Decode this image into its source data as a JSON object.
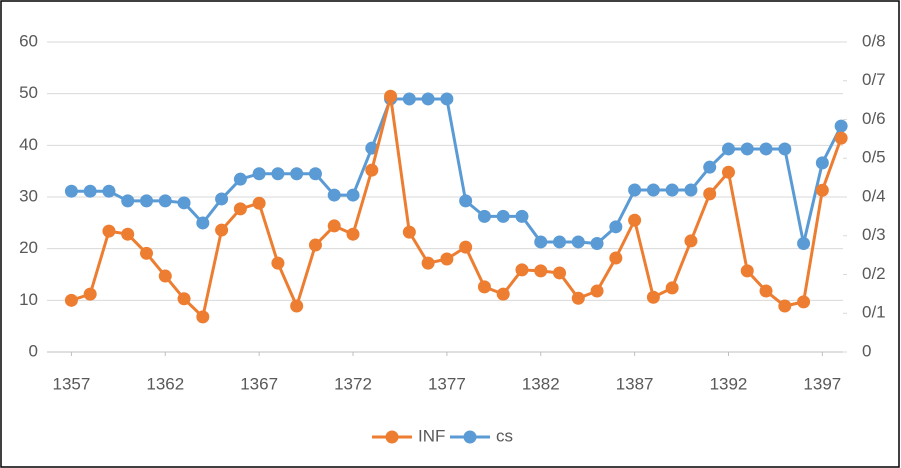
{
  "chart_data": {
    "type": "line",
    "x": [
      1357,
      1358,
      1359,
      1360,
      1361,
      1362,
      1363,
      1364,
      1365,
      1366,
      1367,
      1368,
      1369,
      1370,
      1371,
      1372,
      1373,
      1374,
      1375,
      1376,
      1377,
      1378,
      1379,
      1380,
      1381,
      1382,
      1383,
      1384,
      1385,
      1386,
      1387,
      1388,
      1389,
      1390,
      1391,
      1392,
      1393,
      1394,
      1395,
      1396,
      1397,
      1398
    ],
    "xlim": [
      1355.7,
      1398.1
    ],
    "xticks": [
      1357,
      1362,
      1367,
      1372,
      1377,
      1382,
      1387,
      1392,
      1397
    ],
    "ylim": [
      0,
      60
    ],
    "yticks": [
      0,
      10,
      20,
      30,
      40,
      50,
      60
    ],
    "y2lim": [
      0,
      0.8
    ],
    "y2ticks": [
      0,
      {
        "value": 0.1,
        "label": "0/1"
      },
      {
        "value": 0.2,
        "label": "0/2"
      },
      {
        "value": 0.3,
        "label": "0/3"
      },
      {
        "value": 0.4,
        "label": "0/4"
      },
      {
        "value": 0.5,
        "label": "0/5"
      },
      {
        "value": 0.6,
        "label": "0/6"
      },
      {
        "value": 0.7,
        "label": "0/7"
      },
      {
        "value": 0.8,
        "label": "0/8"
      }
    ],
    "grid": true,
    "legend": "bottom",
    "series": [
      {
        "name": "INF",
        "color": "#ED7D31",
        "values": [
          10,
          11.2,
          23.4,
          22.8,
          19.1,
          14.7,
          10.3,
          6.8,
          23.6,
          27.7,
          28.8,
          17.2,
          8.9,
          20.7,
          24.4,
          22.8,
          35.2,
          49.5,
          23.2,
          17.2,
          18,
          20.3,
          12.6,
          11.2,
          15.9,
          15.7,
          15.3,
          10.4,
          11.8,
          18.2,
          25.5,
          10.6,
          12.4,
          21.5,
          30.6,
          34.8,
          15.7,
          11.8,
          8.9,
          9.7,
          31.3,
          41.4
        ]
      },
      {
        "name": "cs",
        "color": "#5B9BD5",
        "axis": "y2",
        "values": [
          0.415,
          0.415,
          0.415,
          0.39,
          0.39,
          0.39,
          0.385,
          0.333,
          0.395,
          0.446,
          0.46,
          0.46,
          0.46,
          0.46,
          0.405,
          0.405,
          0.526,
          0.653,
          0.653,
          0.653,
          0.653,
          0.39,
          0.35,
          0.35,
          0.35,
          0.284,
          0.284,
          0.284,
          0.28,
          0.323,
          0.418,
          0.418,
          0.418,
          0.418,
          0.477,
          0.524,
          0.524,
          0.524,
          0.524,
          0.28,
          0.488,
          0.583
        ]
      }
    ]
  }
}
